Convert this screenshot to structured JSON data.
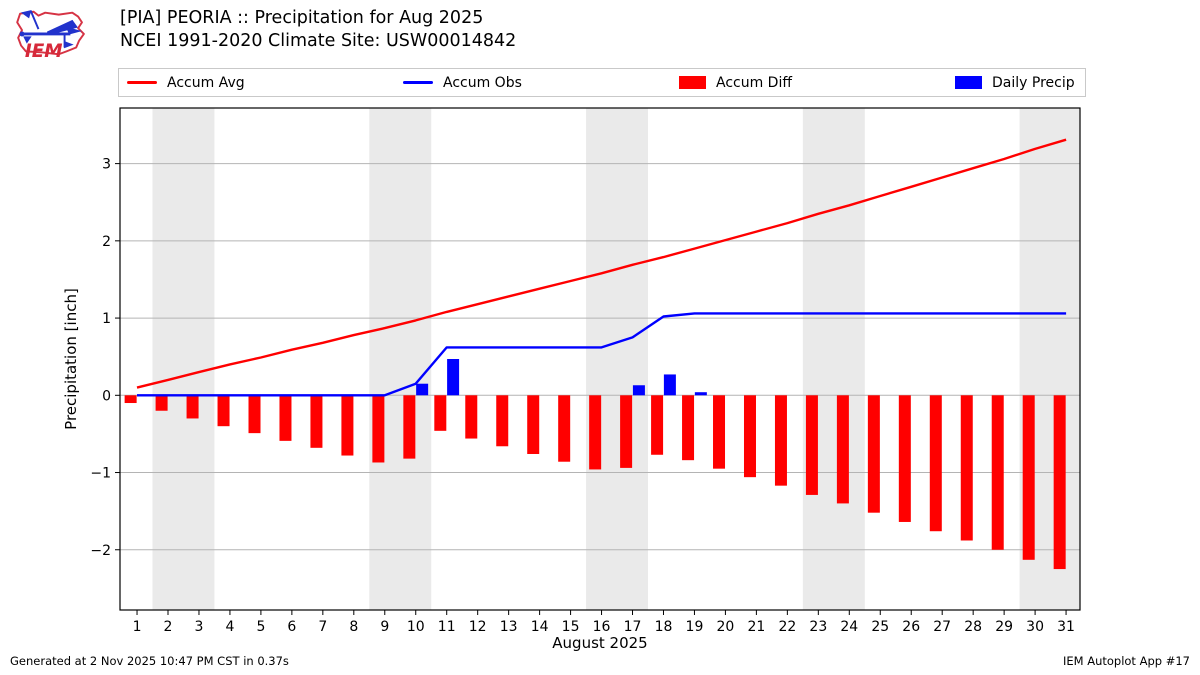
{
  "header": {
    "title_line1": "[PIA] PEORIA :: Precipitation for Aug 2025",
    "title_line2": "NCEI 1991-2020 Climate Site: USW00014842",
    "logo_text": "IEM"
  },
  "legend": [
    {
      "label": "Accum Avg",
      "type": "line",
      "color": "#ff0000"
    },
    {
      "label": "Accum Obs",
      "type": "line",
      "color": "#0000ff"
    },
    {
      "label": "Accum Diff",
      "type": "patch",
      "color": "#ff0000"
    },
    {
      "label": "Daily Precip",
      "type": "patch",
      "color": "#0000ff"
    }
  ],
  "footer": {
    "left": "Generated at 2 Nov 2025 10:47 PM CST in 0.37s",
    "right": "IEM Autoplot App #17"
  },
  "chart_data": {
    "type": "line+bar",
    "title": "[PIA] PEORIA :: Precipitation for Aug 2025",
    "xlabel": "August 2025",
    "ylabel": "Precipitation [inch]",
    "x": [
      1,
      2,
      3,
      4,
      5,
      6,
      7,
      8,
      9,
      10,
      11,
      12,
      13,
      14,
      15,
      16,
      17,
      18,
      19,
      20,
      21,
      22,
      23,
      24,
      25,
      26,
      27,
      28,
      29,
      30,
      31
    ],
    "series": [
      {
        "name": "Accum Avg",
        "type": "line",
        "color": "#ff0000",
        "values": [
          0.1,
          0.2,
          0.3,
          0.4,
          0.49,
          0.59,
          0.68,
          0.78,
          0.87,
          0.97,
          1.08,
          1.18,
          1.28,
          1.38,
          1.48,
          1.58,
          1.69,
          1.79,
          1.9,
          2.01,
          2.12,
          2.23,
          2.35,
          2.46,
          2.58,
          2.7,
          2.82,
          2.94,
          3.06,
          3.19,
          3.31
        ]
      },
      {
        "name": "Accum Obs",
        "type": "line",
        "color": "#0000ff",
        "values": [
          0,
          0,
          0,
          0,
          0,
          0,
          0,
          0,
          0,
          0.15,
          0.62,
          0.62,
          0.62,
          0.62,
          0.62,
          0.62,
          0.75,
          1.02,
          1.06,
          1.06,
          1.06,
          1.06,
          1.06,
          1.06,
          1.06,
          1.06,
          1.06,
          1.06,
          1.06,
          1.06,
          1.06
        ]
      },
      {
        "name": "Accum Diff",
        "type": "bar",
        "color": "#ff0000",
        "values": [
          -0.1,
          -0.2,
          -0.3,
          -0.4,
          -0.49,
          -0.59,
          -0.68,
          -0.78,
          -0.87,
          -0.82,
          -0.46,
          -0.56,
          -0.66,
          -0.76,
          -0.86,
          -0.96,
          -0.94,
          -0.77,
          -0.84,
          -0.95,
          -1.06,
          -1.17,
          -1.29,
          -1.4,
          -1.52,
          -1.64,
          -1.76,
          -1.88,
          -2.0,
          -2.13,
          -2.25
        ]
      },
      {
        "name": "Daily Precip",
        "type": "bar",
        "color": "#0000ff",
        "values": [
          0,
          0,
          0,
          0,
          0,
          0,
          0,
          0,
          0,
          0.15,
          0.47,
          0,
          0,
          0,
          0,
          0,
          0.13,
          0.27,
          0.04,
          0,
          0,
          0,
          0,
          0,
          0,
          0,
          0,
          0,
          0,
          0,
          0
        ]
      }
    ],
    "yticks": [
      -2,
      -1,
      0,
      1,
      2,
      3
    ],
    "ylim": [
      -2.78,
      3.72
    ],
    "xlim": [
      0.45,
      31.45
    ],
    "weekend_bands": [
      [
        1.5,
        3.5
      ],
      [
        8.5,
        10.5
      ],
      [
        15.5,
        17.5
      ],
      [
        22.5,
        24.5
      ],
      [
        29.5,
        31.45
      ]
    ],
    "grid": true,
    "grid_color": "#b4b4b4",
    "band_color": "#eaeaea",
    "legend_position": "top"
  }
}
